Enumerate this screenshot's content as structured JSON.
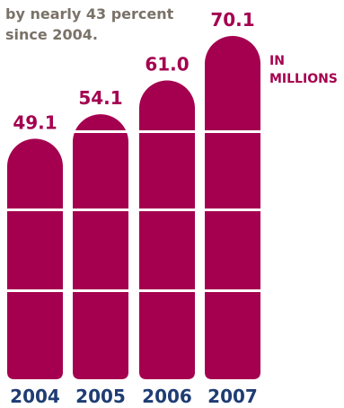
{
  "intro": {
    "line1": "by nearly 43 percent",
    "line2": "since 2004."
  },
  "unit_label": {
    "line1": "IN",
    "line2": "MILLIONS"
  },
  "colors": {
    "bar": "#a4004f",
    "value_text": "#a4004f",
    "year_text": "#1f3d73",
    "intro_text": "#7a7268"
  },
  "chart_data": {
    "type": "bar",
    "categories": [
      "2004",
      "2005",
      "2006",
      "2007"
    ],
    "values": [
      49.1,
      54.1,
      61.0,
      70.1
    ],
    "value_labels": [
      "49.1",
      "54.1",
      "61.0",
      "70.1"
    ],
    "title": "",
    "xlabel": "",
    "ylabel": "IN MILLIONS",
    "grid": false,
    "legend": "none"
  }
}
